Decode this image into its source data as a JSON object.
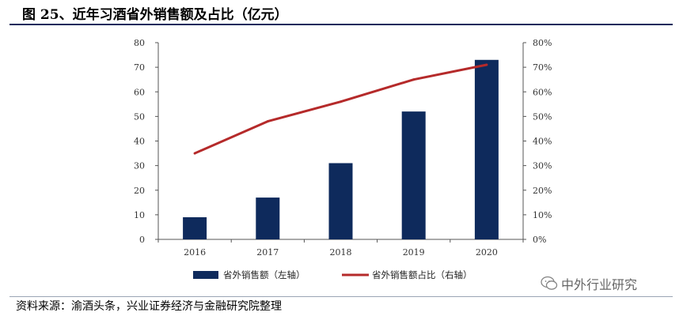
{
  "figure": {
    "title": "图 25、近年习酒省外销售额及占比（亿元）",
    "source": "资料来源：渝酒头条，兴业证券经济与金融研究院整理",
    "watermark": "中外行业研究"
  },
  "colors": {
    "bar": "#0e2a5c",
    "line": "#b52a2a",
    "title_rule": "#0e2a5c"
  },
  "chart_data": {
    "type": "bar",
    "categories": [
      "2016",
      "2017",
      "2018",
      "2019",
      "2020"
    ],
    "series": [
      {
        "name": "省外销售额（左轴）",
        "type": "bar",
        "axis": "left",
        "values": [
          9,
          17,
          31,
          52,
          73
        ]
      },
      {
        "name": "省外销售额占比（右轴）",
        "type": "line",
        "axis": "right",
        "values": [
          35,
          48,
          56,
          65,
          71
        ]
      }
    ],
    "y_left": {
      "min": 0,
      "max": 80,
      "ticks": [
        "0",
        "10",
        "20",
        "30",
        "40",
        "50",
        "60",
        "70",
        "80"
      ]
    },
    "y_right": {
      "min": 0,
      "max": 80,
      "ticks": [
        "0%",
        "10%",
        "20%",
        "30%",
        "40%",
        "50%",
        "60%",
        "70%",
        "80%"
      ]
    },
    "grid": false,
    "legend": "bottom"
  }
}
